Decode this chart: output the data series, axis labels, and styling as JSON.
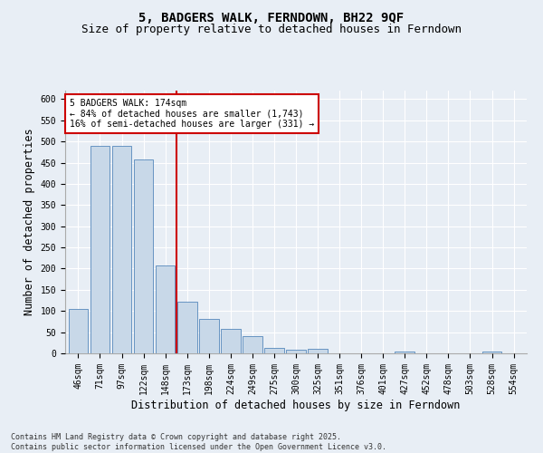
{
  "title": "5, BADGERS WALK, FERNDOWN, BH22 9QF",
  "subtitle": "Size of property relative to detached houses in Ferndown",
  "xlabel": "Distribution of detached houses by size in Ferndown",
  "ylabel": "Number of detached properties",
  "categories": [
    "46sqm",
    "71sqm",
    "97sqm",
    "122sqm",
    "148sqm",
    "173sqm",
    "198sqm",
    "224sqm",
    "249sqm",
    "275sqm",
    "300sqm",
    "325sqm",
    "351sqm",
    "376sqm",
    "401sqm",
    "427sqm",
    "452sqm",
    "478sqm",
    "503sqm",
    "528sqm",
    "554sqm"
  ],
  "values": [
    105,
    490,
    490,
    458,
    208,
    122,
    82,
    58,
    40,
    13,
    8,
    10,
    0,
    0,
    0,
    5,
    0,
    0,
    0,
    5,
    0
  ],
  "bar_color": "#c8d8e8",
  "bar_edge_color": "#5588bb",
  "vline_index": 5,
  "vline_color": "#cc0000",
  "annotation_title": "5 BADGERS WALK: 174sqm",
  "annotation_line1": "← 84% of detached houses are smaller (1,743)",
  "annotation_line2": "16% of semi-detached houses are larger (331) →",
  "annotation_box_color": "#ffffff",
  "annotation_box_edge": "#cc0000",
  "ylim": [
    0,
    620
  ],
  "yticks": [
    0,
    50,
    100,
    150,
    200,
    250,
    300,
    350,
    400,
    450,
    500,
    550,
    600
  ],
  "background_color": "#e8eef5",
  "plot_bg_color": "#e8eef5",
  "footer_line1": "Contains HM Land Registry data © Crown copyright and database right 2025.",
  "footer_line2": "Contains public sector information licensed under the Open Government Licence v3.0.",
  "title_fontsize": 10,
  "subtitle_fontsize": 9,
  "tick_fontsize": 7,
  "label_fontsize": 8.5
}
